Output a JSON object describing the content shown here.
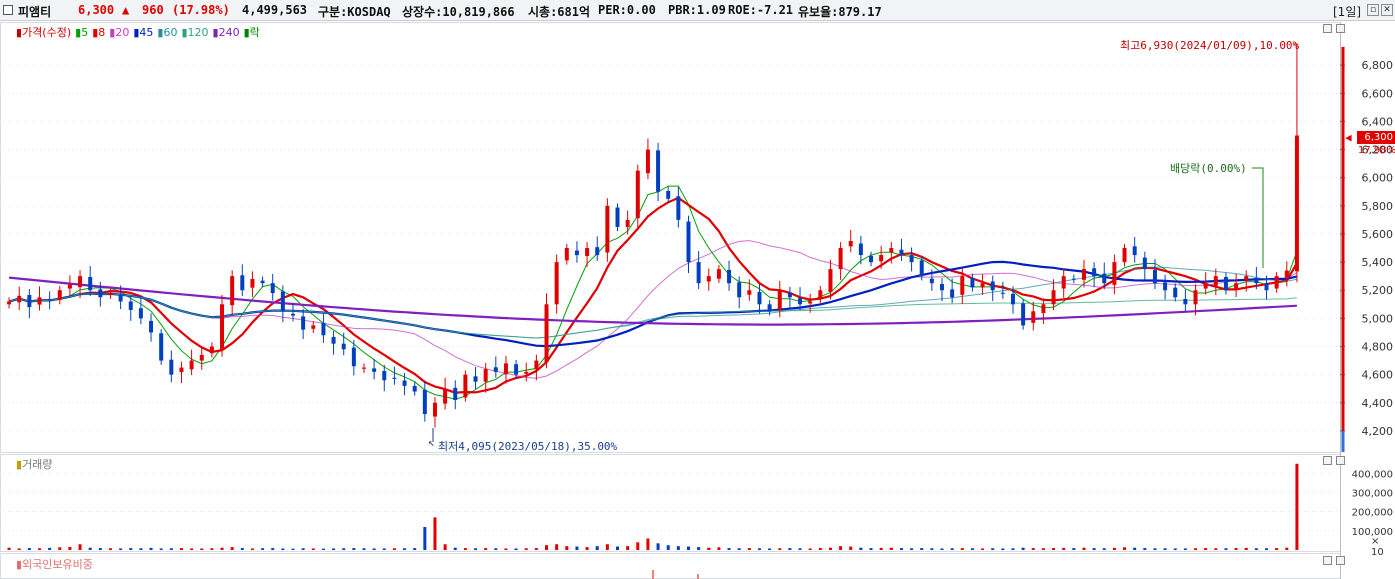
{
  "header": {
    "name": "피앰티",
    "price": "6,300",
    "change": "960",
    "change_pct": "(17.98%)",
    "volume": "4,499,563",
    "market": "구분:KOSDAQ",
    "shares": "상장수:10,819,866",
    "mktcap": "시총:681억",
    "per": "PER:0.00",
    "pbr": "PBR:1.09",
    "roe": "ROE:-7.21",
    "float": "유보율:879.17",
    "period": "[1일]",
    "colors": {
      "up": "#e00000",
      "down": "#0040c0"
    }
  },
  "legend": [
    {
      "label": "가격(수정)",
      "color": "#d00000"
    },
    {
      "label": "5",
      "color": "#00a000"
    },
    {
      "label": "8",
      "color": "#e00000"
    },
    {
      "label": "20",
      "color": "#c040c0"
    },
    {
      "label": "45",
      "color": "#0020c0"
    },
    {
      "label": "60",
      "color": "#2a8ca0"
    },
    {
      "label": "120",
      "color": "#30a080"
    },
    {
      "label": "240",
      "color": "#8020c0"
    },
    {
      "label": "락",
      "color": "#008000"
    }
  ],
  "annotations": {
    "high": "최고6,930(2024/01/09),10.00%",
    "low": "최저4,095(2023/05/18),35.00%",
    "dividend": "배당락(0.00%)",
    "price_tag": "6,300",
    "pct_tag": "17.98%",
    "volume_label": "거래량",
    "foreign_label": "외국인보유비중",
    "volume_unit": "× 10"
  },
  "chart_data": {
    "type": "candlestick",
    "y_ticks": [
      "6,800",
      "6,600",
      "6,400",
      "6,200",
      "6,000",
      "5,800",
      "5,600",
      "5,400",
      "5,200",
      "5,000",
      "4,800",
      "4,600",
      "4,400",
      "4,200"
    ],
    "ylim": [
      4050,
      7050
    ],
    "volume_ticks": [
      "400,000",
      "300,000",
      "200,000",
      "100,000"
    ],
    "current_price": 6300,
    "high": {
      "value": 6930,
      "date": "2024/01/09"
    },
    "low": {
      "value": 4095,
      "date": "2023/05/18"
    },
    "closes": [
      5120,
      5160,
      5080,
      5150,
      5130,
      5200,
      5240,
      5300,
      5200,
      5150,
      5180,
      5120,
      5060,
      5000,
      4900,
      4700,
      4600,
      4650,
      4700,
      4740,
      4800,
      5100,
      5300,
      5200,
      5280,
      5250,
      5180,
      5050,
      5020,
      4920,
      4950,
      4880,
      4820,
      4780,
      4660,
      4650,
      4620,
      4560,
      4570,
      4520,
      4480,
      4320,
      4400,
      4500,
      4420,
      4600,
      4550,
      4640,
      4620,
      4680,
      4600,
      4620,
      4700,
      5100,
      5400,
      5500,
      5450,
      5500,
      5450,
      5800,
      5650,
      5700,
      6050,
      6200,
      5900,
      5850,
      5700,
      5400,
      5250,
      5300,
      5350,
      5250,
      5150,
      5200,
      5100,
      5050,
      5200,
      5150,
      5100,
      5120,
      5200,
      5350,
      5500,
      5550,
      5450,
      5400,
      5450,
      5500,
      5450,
      5400,
      5300,
      5250,
      5200,
      5150,
      5300,
      5220,
      5250,
      5200,
      5180,
      5100,
      4950,
      5050,
      5100,
      5200,
      5300,
      5280,
      5350,
      5300,
      5250,
      5400,
      5500,
      5450,
      5350,
      5250,
      5200,
      5150,
      5100,
      5200,
      5250,
      5300,
      5200,
      5250,
      5300,
      5250,
      5200,
      5300,
      5340,
      6300
    ],
    "volumes": [
      12,
      8,
      10,
      9,
      11,
      14,
      16,
      30,
      12,
      10,
      9,
      8,
      10,
      9,
      11,
      8,
      9,
      10,
      8,
      8,
      9,
      12,
      15,
      10,
      8,
      9,
      10,
      8,
      7,
      9,
      8,
      7,
      8,
      9,
      10,
      9,
      8,
      8,
      9,
      9,
      10,
      120,
      170,
      30,
      12,
      10,
      9,
      10,
      9,
      8,
      8,
      9,
      10,
      25,
      30,
      20,
      18,
      15,
      20,
      30,
      18,
      20,
      40,
      60,
      35,
      25,
      20,
      18,
      15,
      12,
      14,
      10,
      9,
      10,
      9,
      8,
      9,
      10,
      9,
      8,
      10,
      12,
      20,
      18,
      12,
      10,
      11,
      12,
      10,
      9,
      10,
      9,
      8,
      9,
      10,
      9,
      8,
      9,
      8,
      9,
      12,
      10,
      9,
      10,
      11,
      10,
      12,
      10,
      9,
      11,
      14,
      12,
      10,
      9,
      9,
      8,
      8,
      9,
      10,
      9,
      9,
      10,
      11,
      9,
      9,
      10,
      12,
      450
    ],
    "ma": {
      "5": "#00a000",
      "8": "#e00000",
      "20": "#c040c0",
      "45": "#0020c0",
      "60": "#2a8ca0",
      "120": "#30a080",
      "240": "#8020c0"
    },
    "ma_240_start": 5290,
    "grid": "dotted",
    "legend_placement": "top-left"
  }
}
